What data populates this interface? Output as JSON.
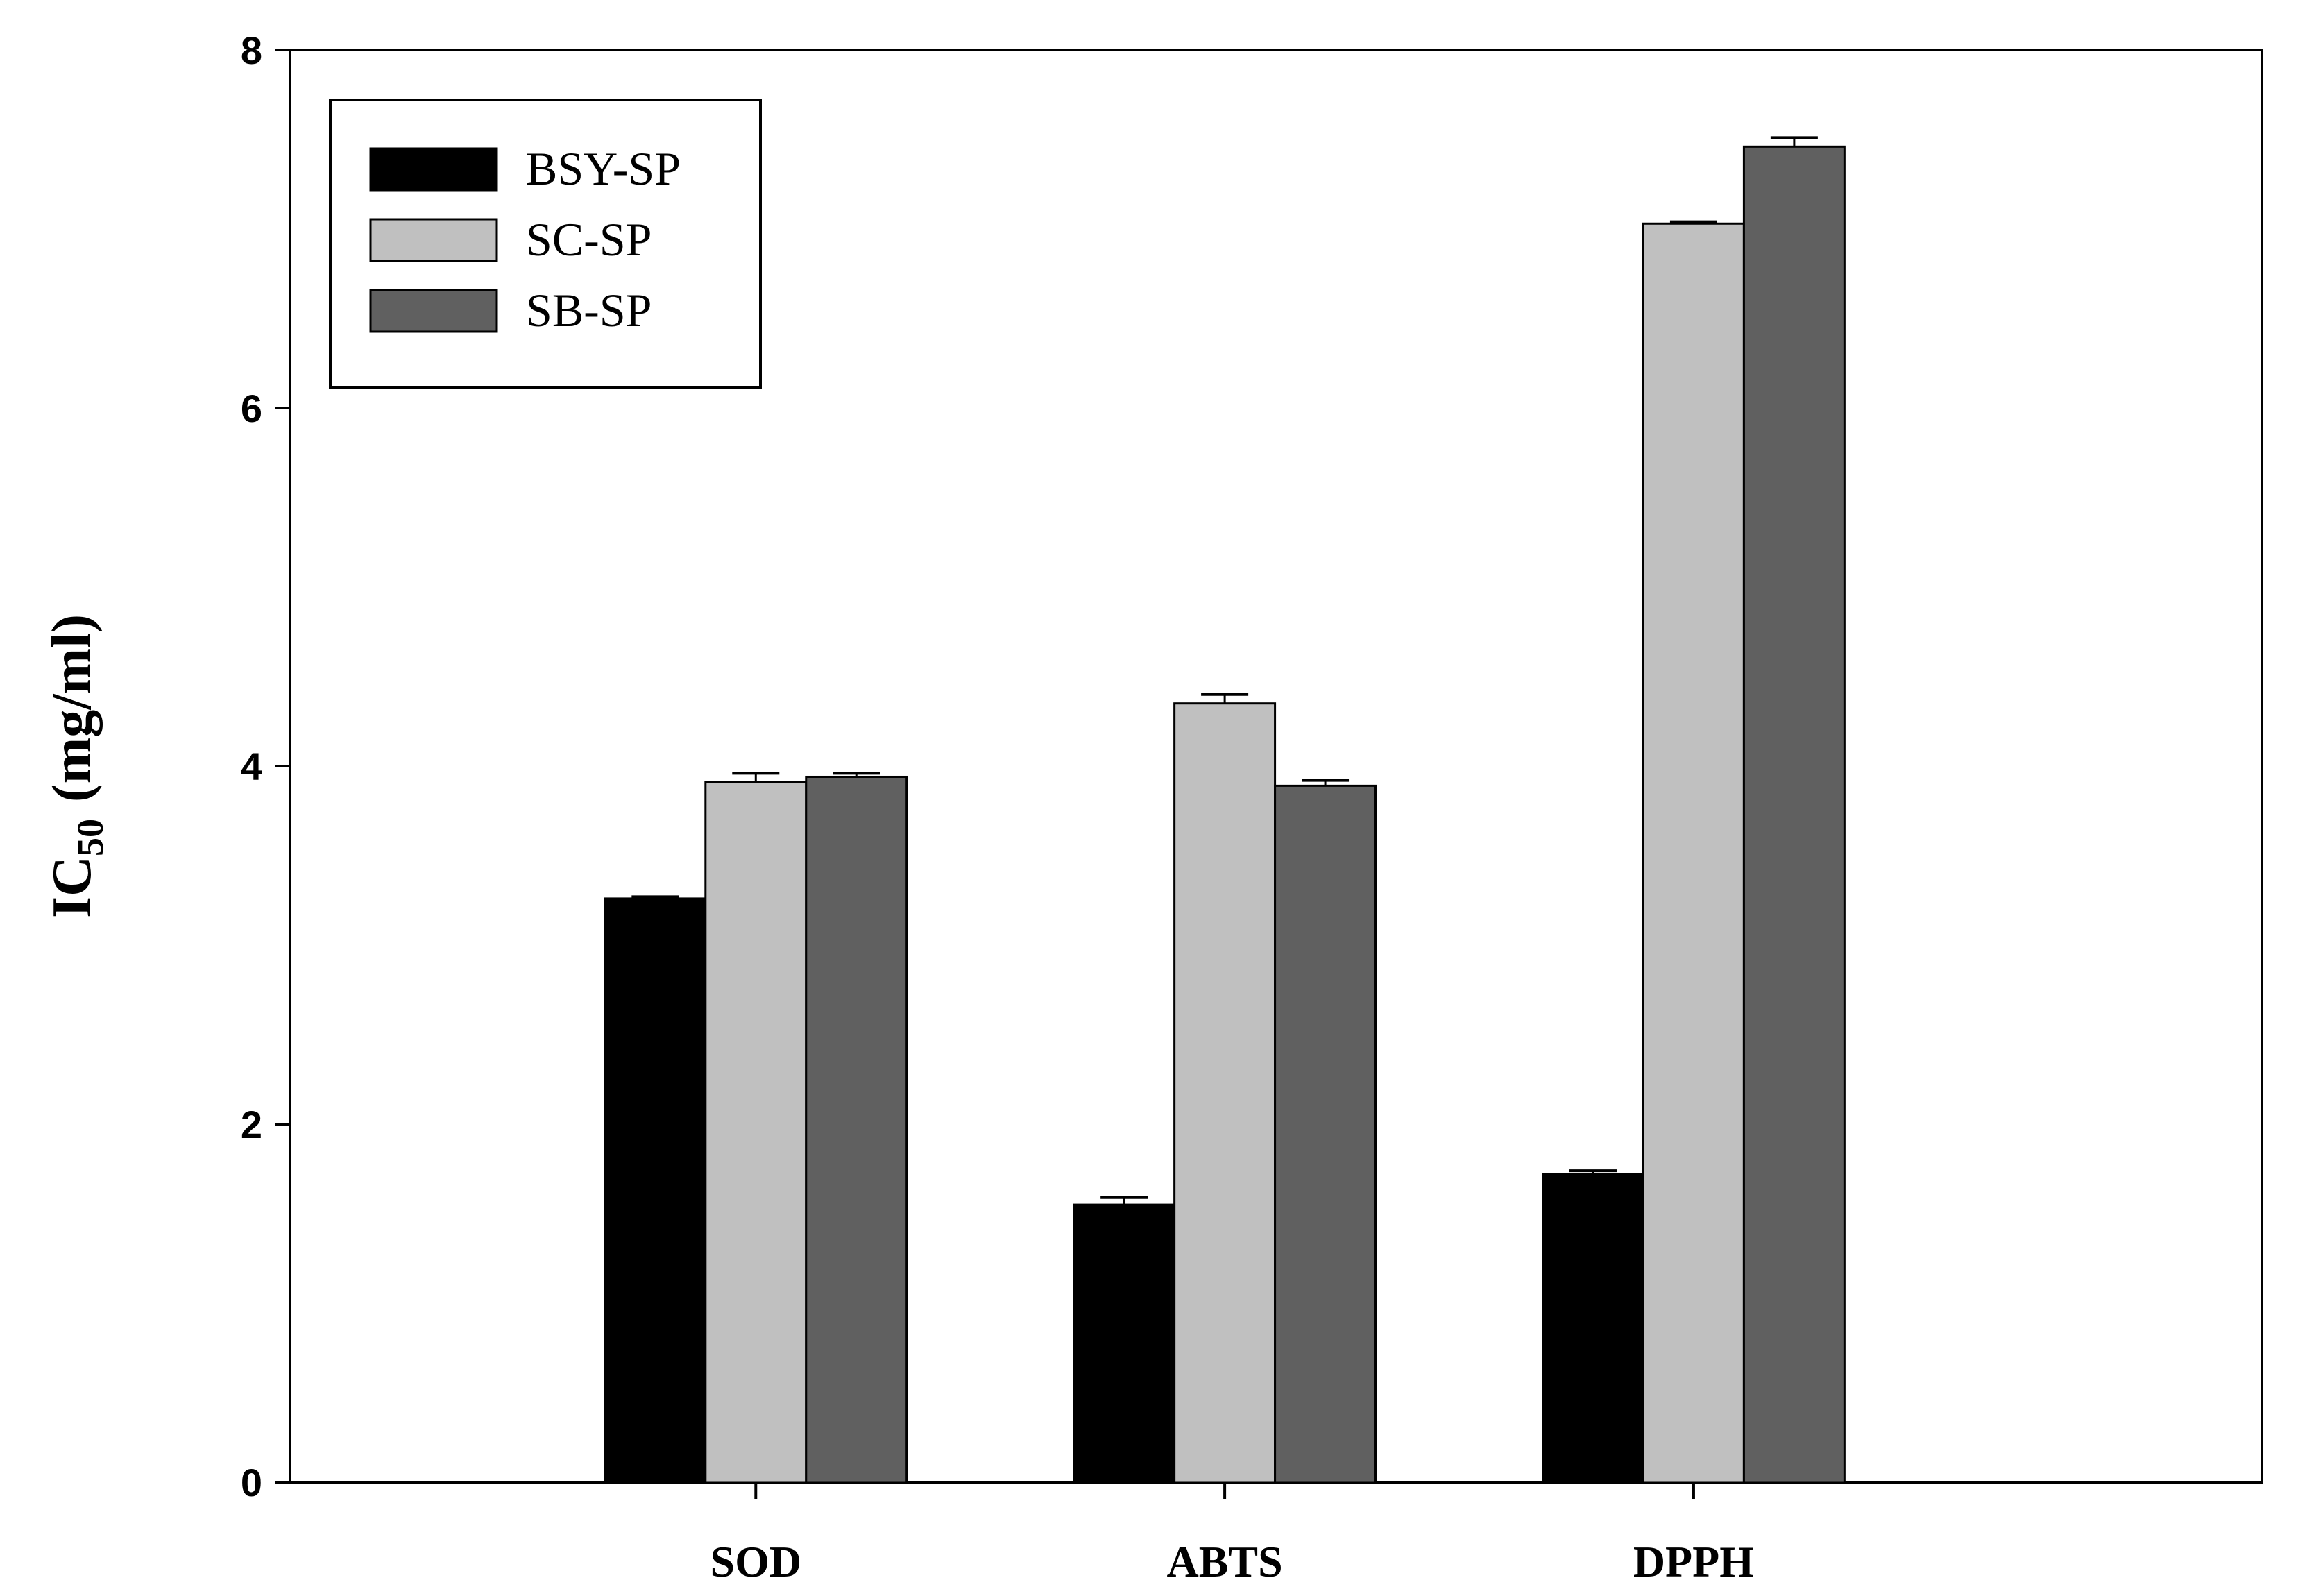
{
  "chart_data": {
    "type": "bar",
    "title": "",
    "xlabel": "",
    "ylabel": {
      "main": "IC",
      "subscript": "50",
      "unit": "(mg/ml)"
    },
    "ylim": [
      0,
      8
    ],
    "yticks": [
      0,
      2,
      4,
      6,
      8
    ],
    "ytick_labels": [
      "0",
      "2",
      "4",
      "6",
      "8"
    ],
    "grid": false,
    "legend_position": "top-left",
    "categories": [
      "SOD",
      "ABTS",
      "DPPH"
    ],
    "series": [
      {
        "name": "BSY-SP",
        "color": "#000000",
        "values": [
          3.26,
          1.55,
          1.72
        ],
        "errors": [
          0.01,
          0.04,
          0.02
        ]
      },
      {
        "name": "SC-SP",
        "color": "#c0c0c0",
        "values": [
          3.91,
          4.35,
          7.03
        ],
        "errors": [
          0.05,
          0.05,
          0.01
        ]
      },
      {
        "name": "SB-SP",
        "color": "#606060",
        "values": [
          3.94,
          3.89,
          7.46
        ],
        "errors": [
          0.02,
          0.03,
          0.05
        ]
      }
    ]
  }
}
